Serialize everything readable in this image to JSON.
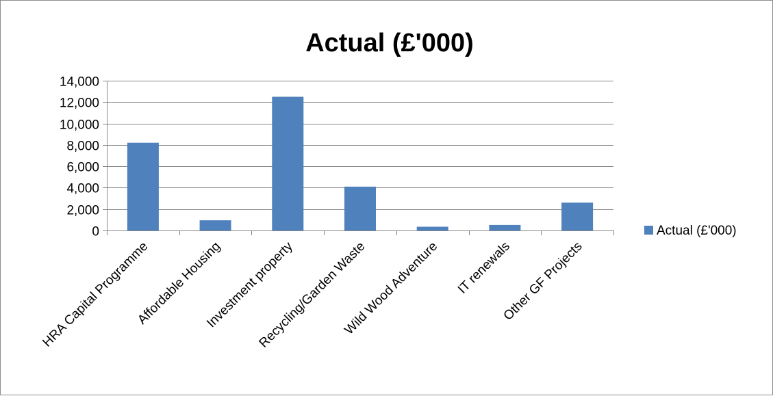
{
  "chart_data": {
    "type": "bar",
    "title": "Actual (£'000)",
    "xlabel": "",
    "ylabel": "",
    "categories": [
      "HRA Capital Programme",
      "Affordable Housing",
      "Investment property",
      "Recycling/Garden Waste",
      "Wild Wood Adventure",
      "IT renewals",
      "Other GF Projects"
    ],
    "series": [
      {
        "name": "Actual (£'000)",
        "color": "#4f81bd",
        "values": [
          8200,
          950,
          12500,
          4100,
          350,
          520,
          2600
        ]
      }
    ],
    "ylim": [
      0,
      14000
    ],
    "yticks": [
      0,
      2000,
      4000,
      6000,
      8000,
      10000,
      12000,
      14000
    ],
    "ytick_labels": [
      "0",
      "2,000",
      "4,000",
      "6,000",
      "8,000",
      "10,000",
      "12,000",
      "14,000"
    ],
    "grid": true,
    "legend_position": "right"
  }
}
